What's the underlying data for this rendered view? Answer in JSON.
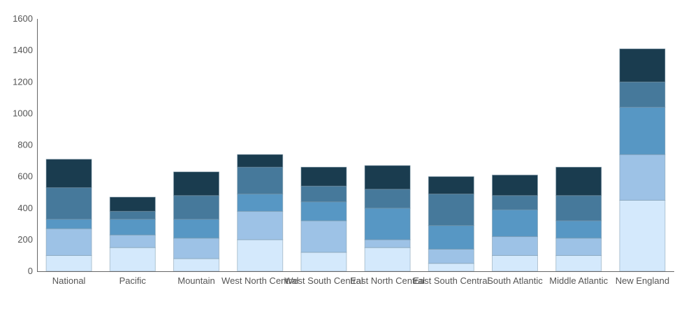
{
  "chart_data": {
    "type": "bar",
    "stacked": true,
    "title": "",
    "xlabel": "",
    "ylabel": "",
    "ylim": [
      0,
      1600
    ],
    "yticks": [
      0,
      200,
      400,
      600,
      800,
      1000,
      1200,
      1400,
      1600
    ],
    "grid": false,
    "legend": "none",
    "categories": [
      "National",
      "Pacific",
      "Mountain",
      "West North Central",
      "West South Central",
      "East North Central",
      "East South Central",
      "South Atlantic",
      "Middle Atlantic",
      "New England"
    ],
    "series": [
      {
        "color": "#d4e9fc",
        "values": [
          100,
          150,
          80,
          200,
          120,
          150,
          50,
          100,
          100,
          450
        ]
      },
      {
        "color": "#9dc2e6",
        "values": [
          170,
          80,
          130,
          180,
          200,
          50,
          90,
          120,
          110,
          290
        ]
      },
      {
        "color": "#5797c4",
        "values": [
          60,
          100,
          120,
          110,
          120,
          200,
          150,
          170,
          110,
          300
        ]
      },
      {
        "color": "#46799b",
        "values": [
          200,
          50,
          150,
          170,
          100,
          120,
          200,
          90,
          160,
          160
        ]
      },
      {
        "color": "#1a3c4f",
        "values": [
          180,
          90,
          150,
          80,
          120,
          150,
          110,
          130,
          180,
          210
        ]
      }
    ]
  }
}
